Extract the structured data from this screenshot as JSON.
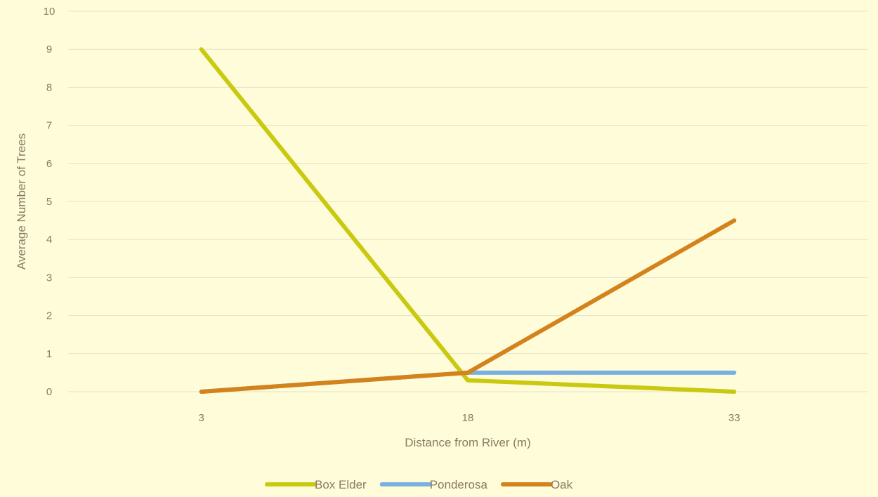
{
  "chart_data": {
    "type": "line",
    "xlabel": "Distance from River (m)",
    "ylabel": "Average Number of Trees",
    "categories": [
      "3",
      "18",
      "33"
    ],
    "ylim": [
      0,
      10
    ],
    "yticks": [
      "0",
      "1",
      "2",
      "3",
      "4",
      "5",
      "6",
      "7",
      "8",
      "9",
      "10"
    ],
    "grid": true,
    "legend_position": "bottom",
    "series": [
      {
        "name": "Box Elder",
        "values": [
          9,
          0.3,
          0
        ],
        "color": "#c9c90f"
      },
      {
        "name": "Ponderosa",
        "values": [
          0,
          0.5,
          0.5
        ],
        "color": "#7ab0e0"
      },
      {
        "name": "Oak",
        "values": [
          0,
          0.5,
          4.5
        ],
        "color": "#d4821c"
      }
    ]
  }
}
